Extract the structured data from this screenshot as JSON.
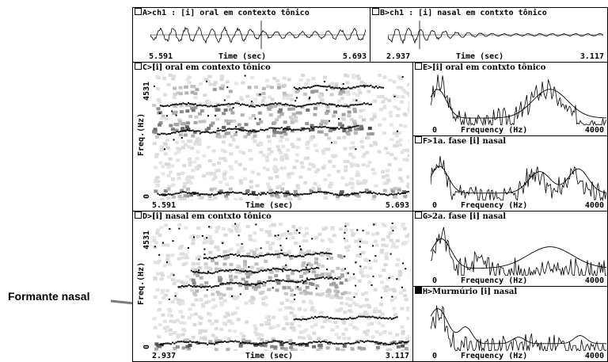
{
  "annotation": {
    "label": "Formante nasal"
  },
  "panels": {
    "A": {
      "marker": "A>",
      "title": "ch1 : [i] oral em contexto tônico",
      "x_start": "5.591",
      "x_mid": "Time (sec)",
      "x_end": "5.693"
    },
    "B": {
      "marker": "B>",
      "title": "ch1 : [i] nasal em contxto tônico",
      "x_start": "2.937",
      "x_mid": "Time (sec)",
      "x_end": "3.117"
    },
    "C": {
      "marker": "C>",
      "title": "[i] oral em contexto tônico",
      "y_top": "4531",
      "y_label": "Freq.(Hz)",
      "y_bottom": "0",
      "x_start": "5.591",
      "x_mid": "Time (sec)",
      "x_end": "5.693"
    },
    "D": {
      "marker": "D>",
      "title": "[i] nasal em contxto tônico",
      "y_top": "4531",
      "y_label": "Freq.(Hz)",
      "y_bottom": "0",
      "x_start": "2.937",
      "x_mid": "Time (sec)",
      "x_end": "3.117"
    },
    "E": {
      "marker": "E>",
      "title": "[i] oral em contxto tônico",
      "x_start": "0",
      "x_mid": "Frequency (Hz)",
      "x_end": "4000"
    },
    "F": {
      "marker": "F>",
      "title": "1a. fase [i] nasal",
      "x_start": "0",
      "x_mid": "Frequency (Hz)",
      "x_end": "4000"
    },
    "G": {
      "marker": "G>",
      "title": "2a. fase [i] nasal",
      "x_start": "0",
      "x_mid": "Frequency (Hz)",
      "x_end": "4000"
    },
    "H": {
      "marker": "H>",
      "title": "Murmúrio [i] nasal",
      "x_start": "0",
      "x_mid": "Frequency (Hz)",
      "x_end": "4000"
    }
  }
}
